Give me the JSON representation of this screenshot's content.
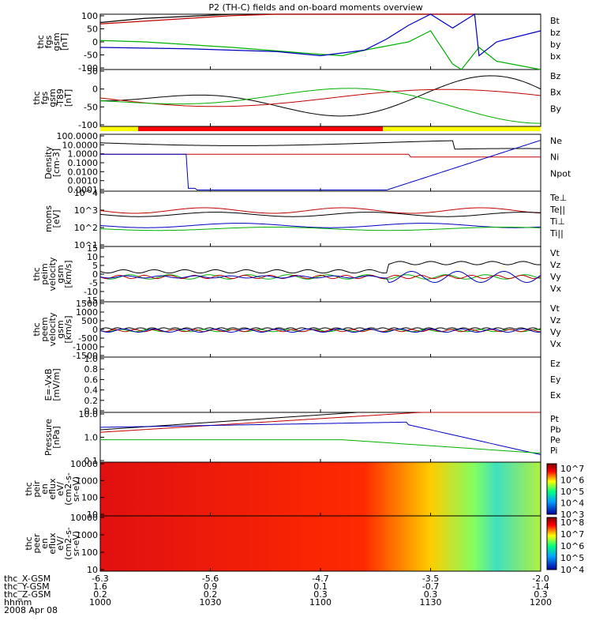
{
  "title": "P2 (TH-C) fields and on-board moments overview",
  "panels": [
    {
      "ylabel": [
        "thc",
        "fgs",
        "gsm",
        "[nT]"
      ],
      "ticks": [
        "100",
        "50",
        "0",
        "-50",
        "-100"
      ],
      "legend": [
        {
          "t": "Bt",
          "c": "#000000"
        },
        {
          "t": "bz",
          "c": "#c00000"
        },
        {
          "t": "by",
          "c": "#00b000"
        },
        {
          "t": "bx",
          "c": "#0000c0"
        }
      ]
    },
    {
      "ylabel": [
        "thc",
        "fgs",
        "gsm",
        "-T89",
        "[nT]"
      ],
      "ticks": [
        "50",
        "0",
        "-50",
        "-100"
      ],
      "legend": [
        {
          "t": "Bz",
          "c": "#c00000"
        },
        {
          "t": "Bx",
          "c": "#000000"
        },
        {
          "t": "By",
          "c": "#00b000"
        }
      ]
    },
    {
      "ylabel": [
        "Density",
        "[cm-3]"
      ],
      "ticks": [
        "100.0000",
        "10.0000",
        "1.0000",
        "0.1000",
        "0.0100",
        "0.0010",
        "0.0001"
      ],
      "legend": [
        {
          "t": "Ne",
          "c": "#c00000"
        },
        {
          "t": "Ni",
          "c": "#000000"
        },
        {
          "t": "Npot",
          "c": "#0000c0"
        }
      ]
    },
    {
      "ylabel": [
        "moms",
        "[eV]"
      ],
      "ticks": [
        "10^4",
        "10^3",
        "10^2",
        "10^1"
      ],
      "legend": [
        {
          "t": "Te⊥",
          "c": "#c00000"
        },
        {
          "t": "Te||",
          "c": "#000000"
        },
        {
          "t": "Ti⊥",
          "c": "#0000c0"
        },
        {
          "t": "Ti||",
          "c": "#00b000"
        }
      ]
    },
    {
      "ylabel": [
        "thc",
        "peim",
        "velocity",
        "gsm",
        "[km/s]"
      ],
      "ticks": [
        "15",
        "10",
        "5",
        "0",
        "-5",
        "-10",
        "-15"
      ],
      "legend": [
        {
          "t": "Vt",
          "c": "#000000"
        },
        {
          "t": "Vz",
          "c": "#c00000"
        },
        {
          "t": "Vy",
          "c": "#00b000"
        },
        {
          "t": "Vx",
          "c": "#0000c0"
        }
      ]
    },
    {
      "ylabel": [
        "thc",
        "peem",
        "velocity",
        "gsm",
        "[km/s]"
      ],
      "ticks": [
        "1500",
        "1000",
        "500",
        "0",
        "-500",
        "-1000",
        "-1500"
      ],
      "legend": [
        {
          "t": "Vt",
          "c": "#000000"
        },
        {
          "t": "Vz",
          "c": "#c00000"
        },
        {
          "t": "Vy",
          "c": "#00b000"
        },
        {
          "t": "Vx",
          "c": "#0000c0"
        }
      ]
    },
    {
      "ylabel": [
        "E=-VxB",
        "[mV/m]"
      ],
      "ticks": [
        "1.0",
        "0.8",
        "0.6",
        "0.4",
        "0.2",
        "0.0"
      ],
      "legend": [
        {
          "t": "Ez",
          "c": "#c00000"
        },
        {
          "t": "Ey",
          "c": "#00b000"
        },
        {
          "t": "Ex",
          "c": "#0000c0"
        }
      ]
    },
    {
      "ylabel": [
        "Pressure",
        "[nPa]"
      ],
      "ticks": [
        "10.0",
        "1.0",
        "0.1"
      ],
      "legend": [
        {
          "t": "Pt",
          "c": "#000000"
        },
        {
          "t": "Pb",
          "c": "#c00000"
        },
        {
          "t": "Pe",
          "c": "#00b000"
        },
        {
          "t": "Pi",
          "c": "#0000c0"
        }
      ]
    },
    {
      "ylabel": [
        "thc",
        "peir",
        "en",
        "eflux",
        "eV/",
        "(cm2-s-",
        "sr-eV)"
      ],
      "ticks": [
        "10000",
        "1000",
        "100",
        "10"
      ],
      "legend": [],
      "colorbar": [
        "10^7",
        "10^6",
        "10^5",
        "10^4",
        "10^3"
      ]
    },
    {
      "ylabel": [
        "thc",
        "peer",
        "en",
        "eflux",
        "eV/",
        "(cm2-s-",
        "sr-eV)"
      ],
      "ticks": [
        "10000",
        "1000",
        "100",
        "10"
      ],
      "legend": [],
      "colorbar": [
        "10^8",
        "10^7",
        "10^6",
        "10^5",
        "10^4"
      ]
    }
  ],
  "footer": {
    "rows": [
      {
        "label": "thc_X-GSM",
        "vals": [
          "-6.3",
          "-5.6",
          "-4.7",
          "-3.5",
          "-2.0"
        ]
      },
      {
        "label": "thc_Y-GSM",
        "vals": [
          "1.6",
          "0.9",
          "0.1",
          "-0.7",
          "-1.4"
        ]
      },
      {
        "label": "thc_Z-GSM",
        "vals": [
          "0.2",
          "0.2",
          "0.3",
          "0.3",
          "0.3"
        ]
      },
      {
        "label": "hhmm",
        "vals": [
          "1000",
          "1030",
          "1100",
          "1130",
          "1200"
        ]
      }
    ],
    "date": "2008 Apr 08"
  },
  "chart_data": {
    "type": "line",
    "title": "P2 (TH-C) fields and on-board moments overview",
    "x_ticks": [
      "1000",
      "1030",
      "1100",
      "1130",
      "1200"
    ],
    "x_ticks_posFrac": [
      0.0,
      0.25,
      0.5,
      0.75,
      1.0
    ],
    "series": [
      {
        "name": "Bt",
        "panel": 0,
        "x": [
          0,
          0.1,
          0.3,
          0.5,
          0.7,
          0.85,
          0.9,
          1
        ],
        "values": [
          70,
          85,
          100,
          100,
          100,
          100,
          100,
          100
        ]
      },
      {
        "name": "bz",
        "panel": 0,
        "x": [
          0,
          0.1,
          0.2,
          0.3,
          0.4,
          0.5,
          0.6,
          0.7,
          0.8,
          0.85
        ],
        "values": [
          65,
          75,
          85,
          95,
          100,
          100,
          100,
          100,
          100,
          100
        ]
      },
      {
        "name": "by",
        "panel": 0,
        "x": [
          0,
          0.1,
          0.3,
          0.5,
          0.55,
          0.6,
          0.7,
          0.75,
          0.8,
          0.82,
          0.86,
          0.9,
          1
        ],
        "values": [
          5,
          0,
          -20,
          -45,
          -50,
          -30,
          0,
          40,
          -80,
          -100,
          -20,
          -70,
          -100
        ]
      },
      {
        "name": "bx",
        "panel": 0,
        "x": [
          0,
          0.2,
          0.4,
          0.5,
          0.6,
          0.65,
          0.7,
          0.75,
          0.8,
          0.85,
          0.86,
          0.9,
          1
        ],
        "values": [
          -20,
          -25,
          -35,
          -50,
          -30,
          10,
          60,
          100,
          50,
          100,
          -50,
          0,
          40
        ]
      }
    ]
  }
}
